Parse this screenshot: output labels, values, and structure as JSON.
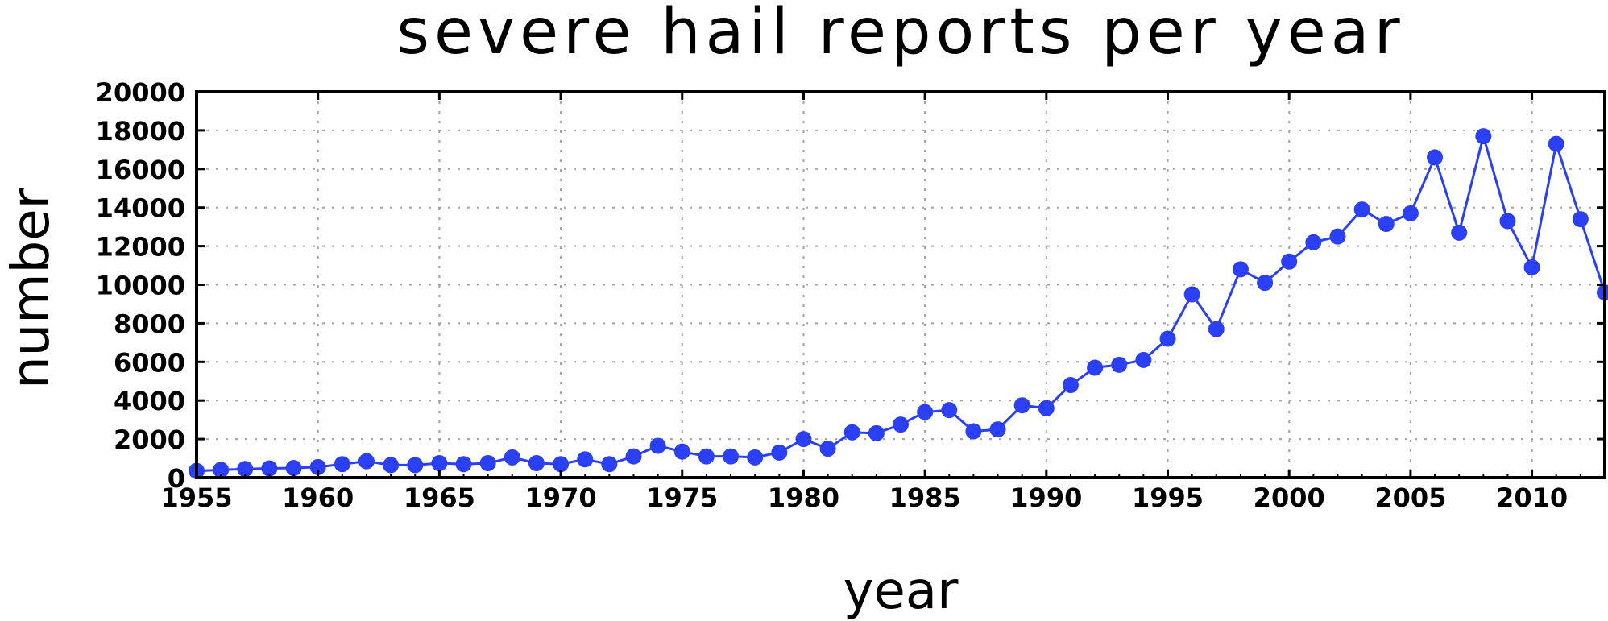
{
  "colors": {
    "series": "#2b3ff5",
    "axis": "#000000",
    "grid": "#a0a0a0"
  },
  "chart_data": {
    "type": "line",
    "title": "severe hail reports per year",
    "xlabel": "year",
    "ylabel": "number",
    "xlim": [
      1955,
      2013
    ],
    "ylim": [
      0,
      20000
    ],
    "x_ticks": [
      1955,
      1960,
      1965,
      1970,
      1975,
      1980,
      1985,
      1990,
      1995,
      2000,
      2005,
      2010
    ],
    "y_ticks": [
      0,
      2000,
      4000,
      6000,
      8000,
      10000,
      12000,
      14000,
      16000,
      18000,
      20000
    ],
    "grid": true,
    "markers": "filled-circle",
    "x": [
      1955,
      1956,
      1957,
      1958,
      1959,
      1960,
      1961,
      1962,
      1963,
      1964,
      1965,
      1966,
      1967,
      1968,
      1969,
      1970,
      1971,
      1972,
      1973,
      1974,
      1975,
      1976,
      1977,
      1978,
      1979,
      1980,
      1981,
      1982,
      1983,
      1984,
      1985,
      1986,
      1987,
      1988,
      1989,
      1990,
      1991,
      1992,
      1993,
      1994,
      1995,
      1996,
      1997,
      1998,
      1999,
      2000,
      2001,
      2002,
      2003,
      2004,
      2005,
      2006,
      2007,
      2008,
      2009,
      2010,
      2011,
      2012,
      2013
    ],
    "values": [
      350,
      400,
      450,
      480,
      500,
      550,
      700,
      850,
      650,
      650,
      750,
      700,
      750,
      1050,
      750,
      700,
      950,
      700,
      1100,
      1650,
      1350,
      1100,
      1100,
      1050,
      1300,
      2000,
      1500,
      2350,
      2300,
      2750,
      3400,
      3500,
      2400,
      2500,
      3750,
      3600,
      4800,
      5700,
      5850,
      6100,
      7200,
      9500,
      7700,
      10800,
      10100,
      11200,
      12200,
      12500,
      13900,
      13150,
      13700,
      16600,
      12700,
      17700,
      13300,
      10900,
      17300,
      13400,
      9600
    ]
  }
}
